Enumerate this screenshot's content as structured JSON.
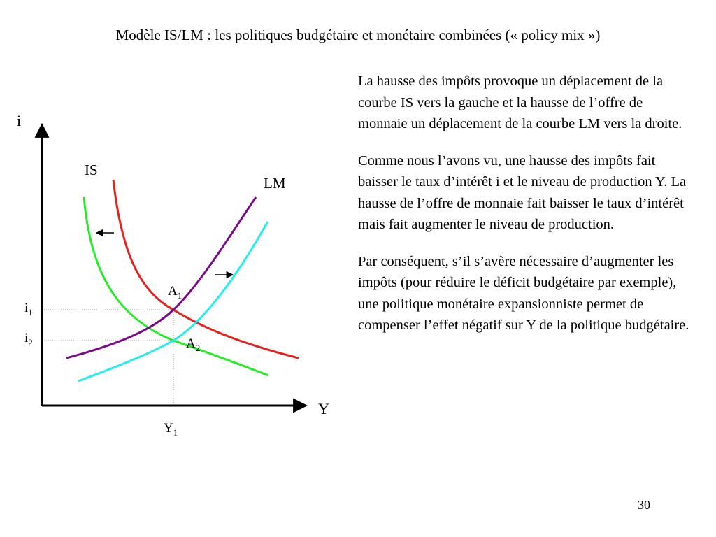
{
  "slide": {
    "title": "Modèle IS/LM : les politiques budgétaire et monétaire combinées (« policy mix »)",
    "page_number": "30"
  },
  "diagram": {
    "y_axis_label": "i",
    "x_axis_label": "Y",
    "curves": {
      "is_label": "IS",
      "lm_label": "LM"
    },
    "colors": {
      "is_initial": "#e8201c",
      "is_shifted": "#22ee22",
      "lm_initial": "#7a0a8a",
      "lm_shifted": "#22eeee",
      "axis": "#000000",
      "guide": "#999999"
    },
    "points": {
      "a1_main": "A",
      "a1_sub": "1",
      "a2_main": "A",
      "a2_sub": "2"
    },
    "levels": {
      "i1_main": "i",
      "i1_sub": "1",
      "i2_main": "i",
      "i2_sub": "2",
      "y1_main": "Y",
      "y1_sub": "1"
    }
  },
  "text": {
    "paragraphs": [
      "La hausse des impôts provoque un déplacement de la courbe IS vers la gauche et la hausse de l’offre de monnaie un déplacement de la courbe LM vers la droite.",
      "Comme nous l’avons vu, une hausse des impôts fait baisser le taux d’intérêt i et le niveau de production Y. La hausse de l’offre de monnaie fait baisser le taux d’intérêt mais fait augmenter le niveau de production.",
      "Par conséquent, s’il s’avère nécessaire d’augmenter les impôts (pour réduire le déficit budgétaire par exemple), une politique monétaire expansionniste permet de compenser l’effet négatif sur Y de la politique budgétaire."
    ]
  }
}
